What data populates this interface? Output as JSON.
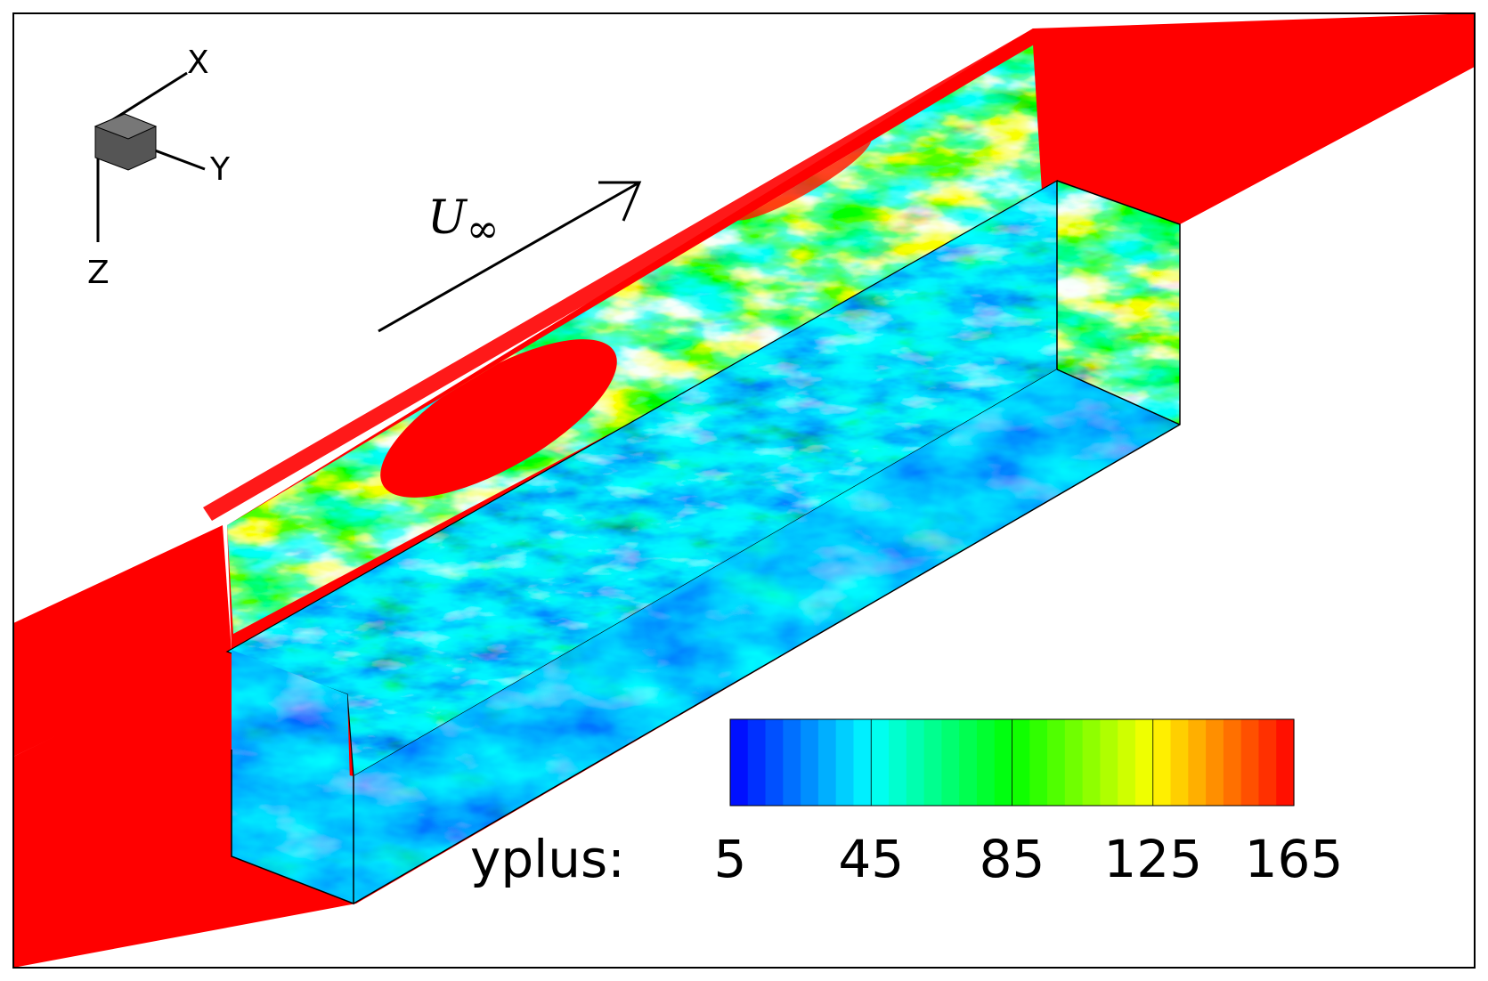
{
  "triad": {
    "x_label": "X",
    "y_label": "Y",
    "z_label": "Z"
  },
  "flow_label": {
    "symbol": "U",
    "subscript": "∞"
  },
  "colorbar": {
    "title": "yplus:",
    "ticks": [
      "5",
      "45",
      "85",
      "125",
      "165"
    ],
    "min": 5,
    "max": 165,
    "levels": 32,
    "colormap": [
      "#0000ff",
      "#00ffff",
      "#00ff00",
      "#ffff00",
      "#ff0000"
    ]
  },
  "colors": {
    "wall_high": "#ff0000",
    "frame": "#000000",
    "background": "#ffffff"
  }
}
